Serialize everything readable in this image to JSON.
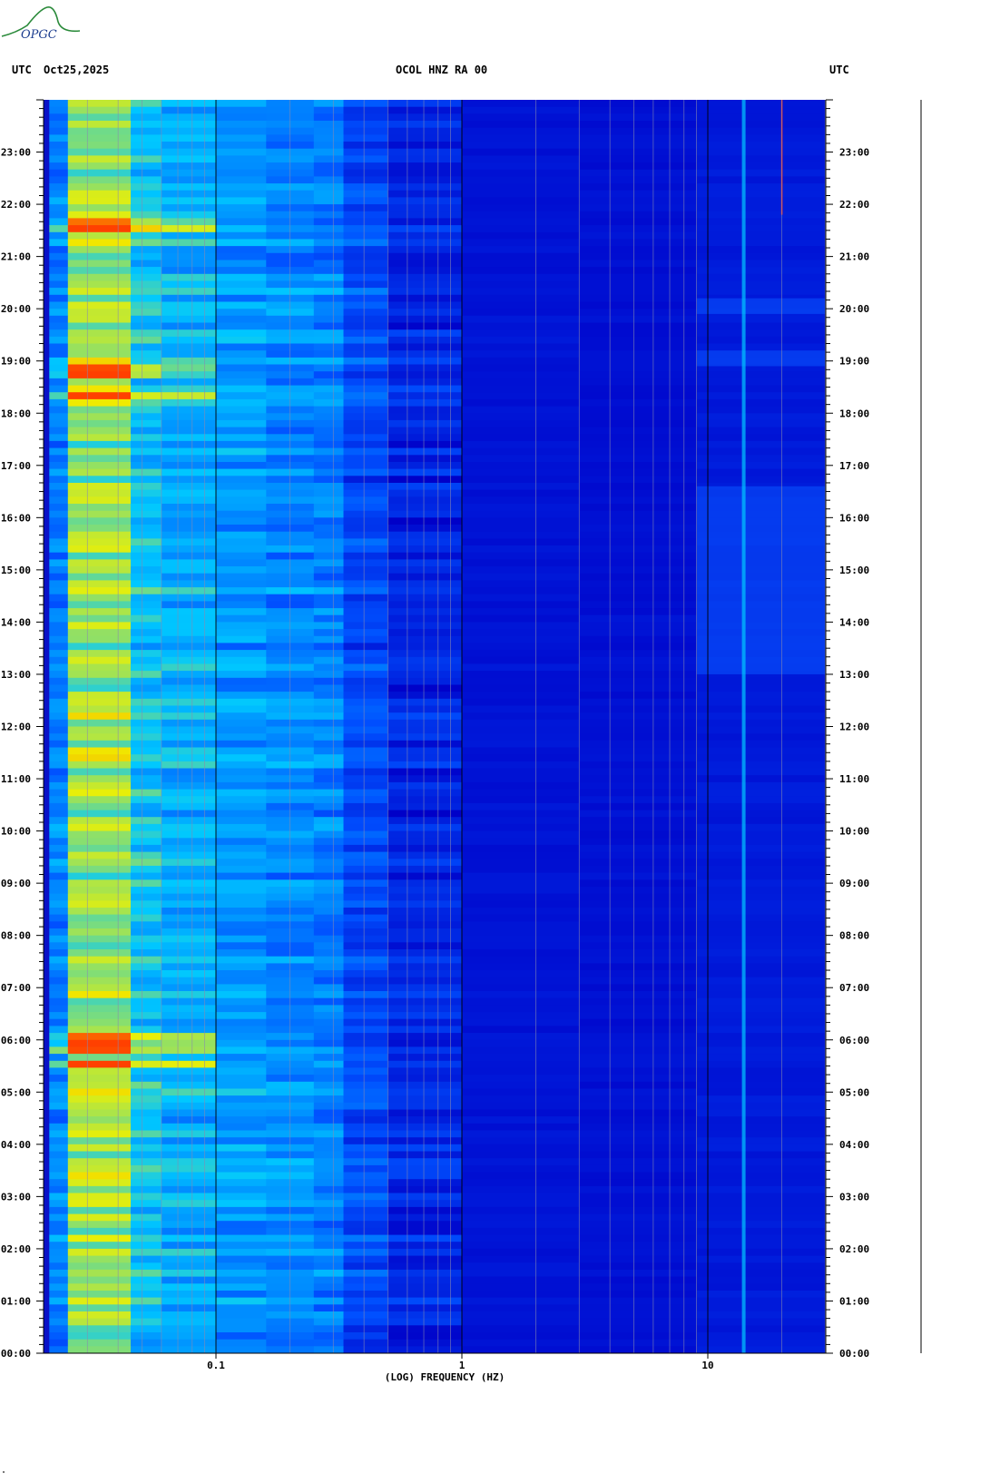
{
  "header": {
    "left_label": "UTC",
    "date": "Oct25,2025",
    "station": "OCOL HNZ RA 00",
    "right_label": "UTC"
  },
  "logo": {
    "text": "OPGC"
  },
  "bottom_mark": "\"",
  "chart_data": {
    "type": "heatmap",
    "title": "OCOL HNZ RA 00",
    "xlabel": "(LOG) FREQUENCY (HZ)",
    "ylabel": "UTC",
    "x_scale": "log",
    "xlim": [
      0.021,
      30
    ],
    "x_ticks": [
      {
        "value": 0.1,
        "label": "0.1"
      },
      {
        "value": 1,
        "label": "1"
      },
      {
        "value": 10,
        "label": "10"
      }
    ],
    "ylim_hours": [
      0,
      24
    ],
    "y_ticks": [
      "00:00",
      "01:00",
      "02:00",
      "03:00",
      "04:00",
      "05:00",
      "06:00",
      "07:00",
      "08:00",
      "09:00",
      "10:00",
      "11:00",
      "12:00",
      "13:00",
      "14:00",
      "15:00",
      "16:00",
      "17:00",
      "18:00",
      "19:00",
      "20:00",
      "21:00",
      "22:00",
      "23:00"
    ],
    "colormap": [
      "#0000c8",
      "#0050ff",
      "#00c8ff",
      "#f0f000",
      "#ff4000"
    ],
    "features": {
      "strong_band_hz": [
        0.025,
        0.045
      ],
      "hot_events_hours": [
        5.5,
        5.8,
        6.0,
        18.3,
        18.8,
        21.6
      ],
      "continuous_line_hz": 14,
      "active_hf_hours": [
        [
          13.0,
          16.6
        ],
        [
          18.9,
          19.2
        ],
        [
          19.9,
          20.2
        ]
      ],
      "red_line_hz": 20
    }
  }
}
